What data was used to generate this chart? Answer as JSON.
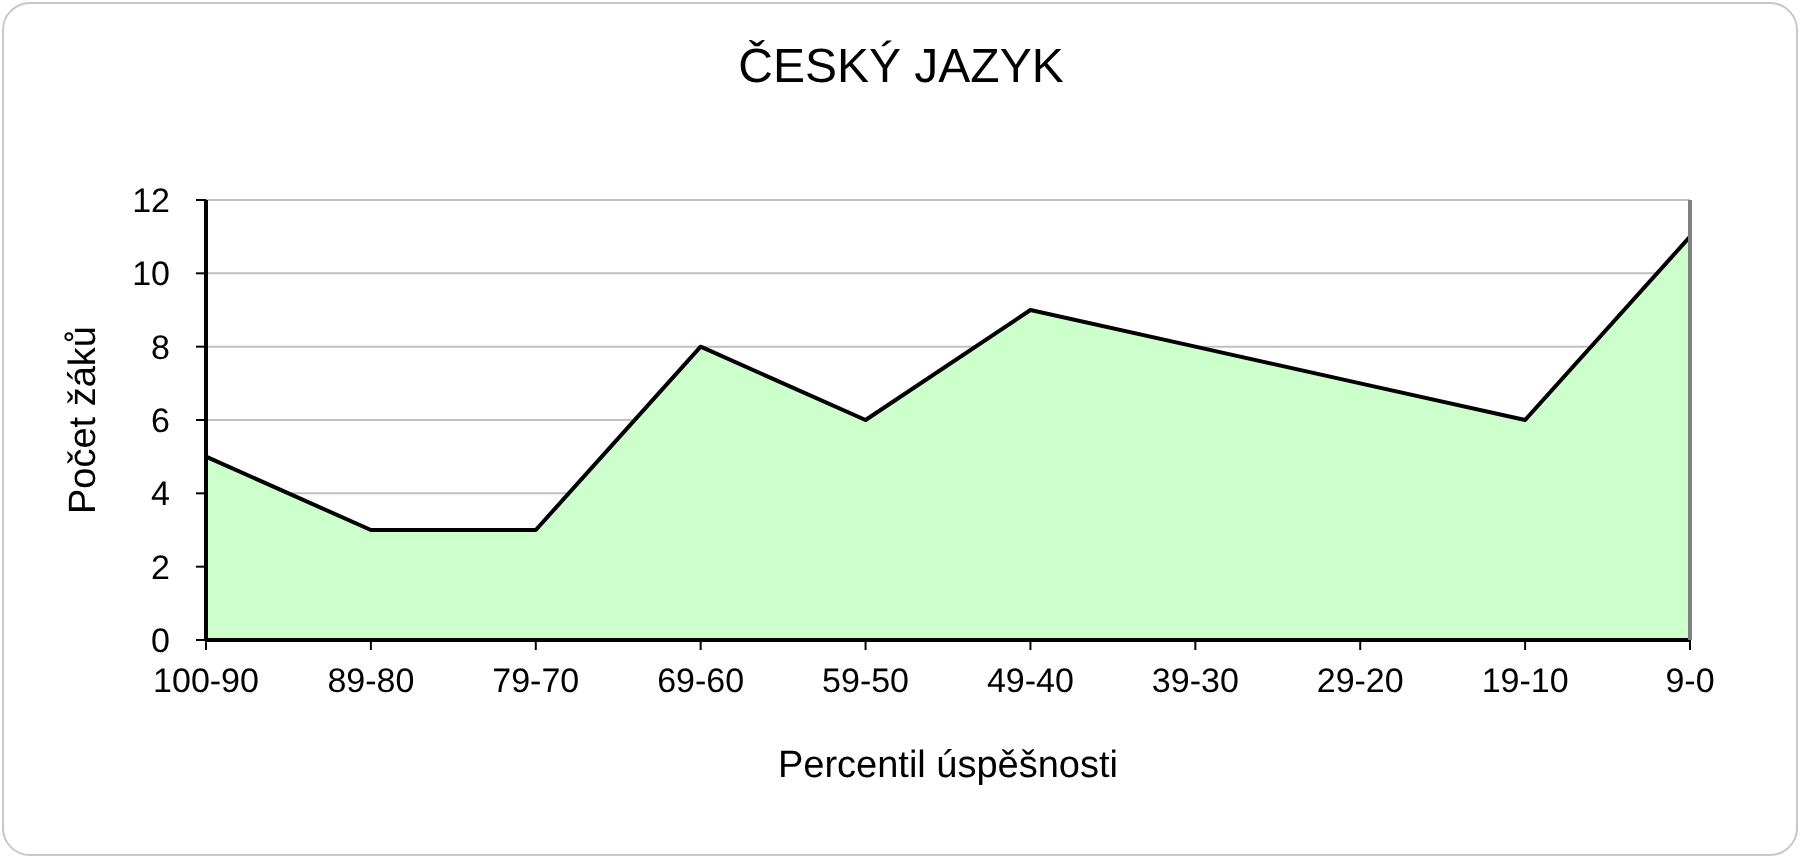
{
  "chart_data": {
    "type": "area",
    "title": "ČESKÝ JAZYK",
    "xlabel": "Percentil úspěšnosti",
    "ylabel": "Počet žáků",
    "categories": [
      "100-90",
      "89-80",
      "79-70",
      "69-60",
      "59-50",
      "49-40",
      "39-30",
      "29-20",
      "19-10",
      "9-0"
    ],
    "values": [
      5,
      3,
      3,
      8,
      6,
      9,
      8,
      7,
      6,
      11
    ],
    "color": "#ccffcc",
    "ylim": [
      0,
      12
    ],
    "yticks": [
      0,
      2,
      4,
      6,
      8,
      10,
      12
    ],
    "grid": "y"
  }
}
